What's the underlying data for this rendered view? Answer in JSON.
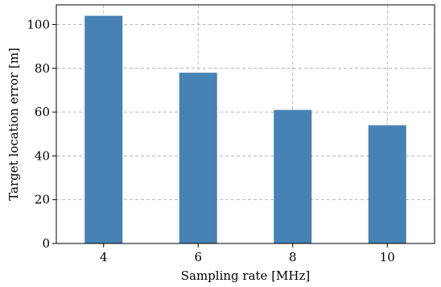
{
  "chart_data": {
    "type": "bar",
    "categories": [
      "4",
      "6",
      "8",
      "10"
    ],
    "values": [
      104,
      78,
      61,
      54
    ],
    "xlabel": "Sampling rate [MHz]",
    "ylabel": "Target location error [m]",
    "ylim": [
      0,
      109
    ],
    "yticks": [
      0,
      20,
      40,
      60,
      80,
      100
    ],
    "grid": true,
    "bar_color": "#4682b4"
  }
}
